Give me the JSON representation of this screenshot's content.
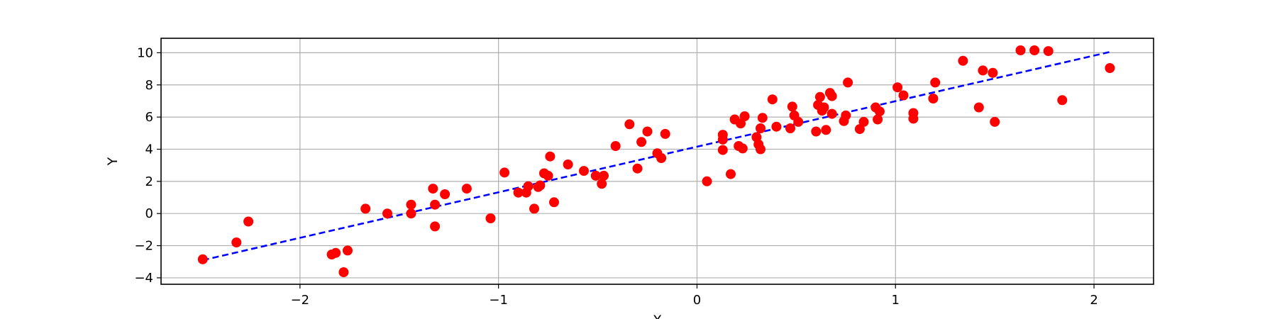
{
  "chart_data": {
    "type": "scatter",
    "title": "",
    "xlabel": "X",
    "ylabel": "Y",
    "xlim": [
      -2.7,
      2.3
    ],
    "ylim": [
      -4.4,
      10.9
    ],
    "xticks": [
      -2,
      -1,
      0,
      1,
      2
    ],
    "yticks": [
      -4,
      -2,
      0,
      2,
      4,
      6,
      8,
      10
    ],
    "grid": true,
    "colors": {
      "points": "#ff0000",
      "fit_line": "#0000ff",
      "grid": "#b0b0b0",
      "axes": "#000000"
    },
    "series": [
      {
        "kind": "scatter",
        "points": [
          [
            -2.49,
            -2.85
          ],
          [
            -2.32,
            -1.8
          ],
          [
            -2.26,
            -0.5
          ],
          [
            -1.84,
            -2.55
          ],
          [
            -1.82,
            -2.45
          ],
          [
            -1.78,
            -3.65
          ],
          [
            -1.76,
            -2.3
          ],
          [
            -1.67,
            0.3
          ],
          [
            -1.56,
            0.0
          ],
          [
            -1.44,
            0.0
          ],
          [
            -1.44,
            0.55
          ],
          [
            -1.33,
            1.55
          ],
          [
            -1.32,
            0.55
          ],
          [
            -1.32,
            -0.8
          ],
          [
            -1.27,
            1.2
          ],
          [
            -1.16,
            1.55
          ],
          [
            -1.04,
            -0.3
          ],
          [
            -0.97,
            2.55
          ],
          [
            -0.9,
            1.3
          ],
          [
            -0.86,
            1.3
          ],
          [
            -0.85,
            1.7
          ],
          [
            -0.82,
            0.3
          ],
          [
            -0.8,
            1.65
          ],
          [
            -0.79,
            1.75
          ],
          [
            -0.77,
            2.5
          ],
          [
            -0.75,
            2.35
          ],
          [
            -0.74,
            3.55
          ],
          [
            -0.72,
            0.7
          ],
          [
            -0.65,
            3.05
          ],
          [
            -0.57,
            2.65
          ],
          [
            -0.51,
            2.35
          ],
          [
            -0.48,
            1.85
          ],
          [
            -0.47,
            2.35
          ],
          [
            -0.41,
            4.2
          ],
          [
            -0.34,
            5.55
          ],
          [
            -0.3,
            2.8
          ],
          [
            -0.28,
            4.45
          ],
          [
            -0.25,
            5.1
          ],
          [
            -0.2,
            3.75
          ],
          [
            -0.18,
            3.45
          ],
          [
            -0.16,
            4.95
          ],
          [
            0.05,
            2.0
          ],
          [
            0.13,
            4.9
          ],
          [
            0.13,
            4.6
          ],
          [
            0.13,
            3.95
          ],
          [
            0.17,
            2.45
          ],
          [
            0.19,
            5.85
          ],
          [
            0.21,
            4.2
          ],
          [
            0.22,
            5.6
          ],
          [
            0.23,
            4.05
          ],
          [
            0.24,
            6.05
          ],
          [
            0.3,
            4.75
          ],
          [
            0.31,
            4.3
          ],
          [
            0.32,
            5.3
          ],
          [
            0.32,
            4.0
          ],
          [
            0.33,
            5.95
          ],
          [
            0.38,
            7.1
          ],
          [
            0.4,
            5.4
          ],
          [
            0.47,
            5.3
          ],
          [
            0.48,
            6.65
          ],
          [
            0.49,
            6.1
          ],
          [
            0.51,
            5.7
          ],
          [
            0.6,
            5.1
          ],
          [
            0.61,
            6.75
          ],
          [
            0.62,
            7.25
          ],
          [
            0.63,
            6.4
          ],
          [
            0.64,
            6.6
          ],
          [
            0.65,
            5.2
          ],
          [
            0.67,
            7.5
          ],
          [
            0.68,
            7.3
          ],
          [
            0.68,
            6.2
          ],
          [
            0.74,
            5.75
          ],
          [
            0.75,
            6.1
          ],
          [
            0.76,
            8.15
          ],
          [
            0.82,
            5.25
          ],
          [
            0.84,
            5.7
          ],
          [
            0.9,
            6.6
          ],
          [
            0.91,
            5.85
          ],
          [
            0.92,
            6.35
          ],
          [
            1.01,
            7.85
          ],
          [
            1.04,
            7.35
          ],
          [
            1.09,
            6.25
          ],
          [
            1.09,
            5.9
          ],
          [
            1.19,
            7.15
          ],
          [
            1.2,
            8.15
          ],
          [
            1.34,
            9.5
          ],
          [
            1.42,
            6.6
          ],
          [
            1.44,
            8.9
          ],
          [
            1.49,
            8.75
          ],
          [
            1.5,
            5.7
          ],
          [
            1.63,
            10.15
          ],
          [
            1.7,
            10.15
          ],
          [
            1.77,
            10.1
          ],
          [
            1.84,
            7.05
          ],
          [
            2.08,
            9.05
          ]
        ]
      },
      {
        "kind": "fit_line",
        "points": [
          [
            -2.49,
            -2.9
          ],
          [
            2.08,
            10.05
          ]
        ]
      }
    ]
  }
}
